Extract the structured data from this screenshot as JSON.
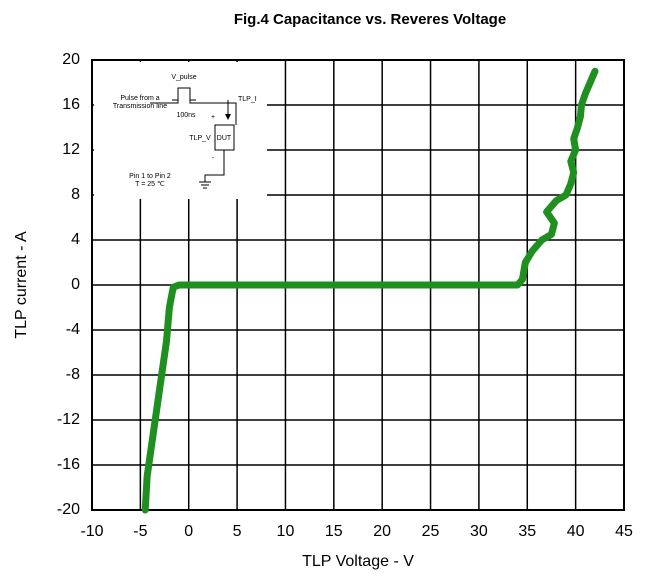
{
  "chart_data": {
    "type": "line",
    "title": "Fig.4 Capacitance vs. Reveres Voltage",
    "xlabel": "TLP Voltage - V",
    "ylabel": "TLP current - A",
    "x": [
      -4.5,
      -4.3,
      -3.8,
      -3.3,
      -2.8,
      -2.3,
      -2.0,
      -1.6,
      -1.0,
      34.0,
      34.5,
      34.8,
      35.5,
      36.5,
      37.5,
      37.8,
      37.0,
      38.0,
      39.0,
      39.5,
      39.8,
      39.5,
      40.0,
      39.8,
      40.2,
      40.5,
      40.6,
      41.0,
      41.5,
      42.0
    ],
    "values": [
      -20,
      -17,
      -14,
      -11,
      -8,
      -5,
      -2,
      -0.2,
      0,
      0,
      0.5,
      2,
      3,
      4,
      4.5,
      5.5,
      6.5,
      7.5,
      8,
      9,
      10,
      11,
      12,
      13,
      14,
      15,
      16,
      17,
      18,
      19
    ],
    "color": "#1f8f1f",
    "xlim": [
      -10,
      45
    ],
    "xticks": [
      -10,
      -5,
      0,
      5,
      10,
      15,
      20,
      25,
      30,
      35,
      40,
      45
    ],
    "ylim": [
      -20,
      20
    ],
    "yticks": [
      -20,
      -16,
      -12,
      -8,
      -4,
      0,
      4,
      8,
      12,
      16,
      20
    ],
    "grid": true,
    "annotations": [
      "V_pulse",
      "Pulse from a",
      "Transmission line",
      "100ns",
      "TLP_I",
      "+",
      "TLP_V",
      "DUT",
      "-",
      "Pin 1 to Pin 2",
      "T = 25 ℃"
    ]
  }
}
